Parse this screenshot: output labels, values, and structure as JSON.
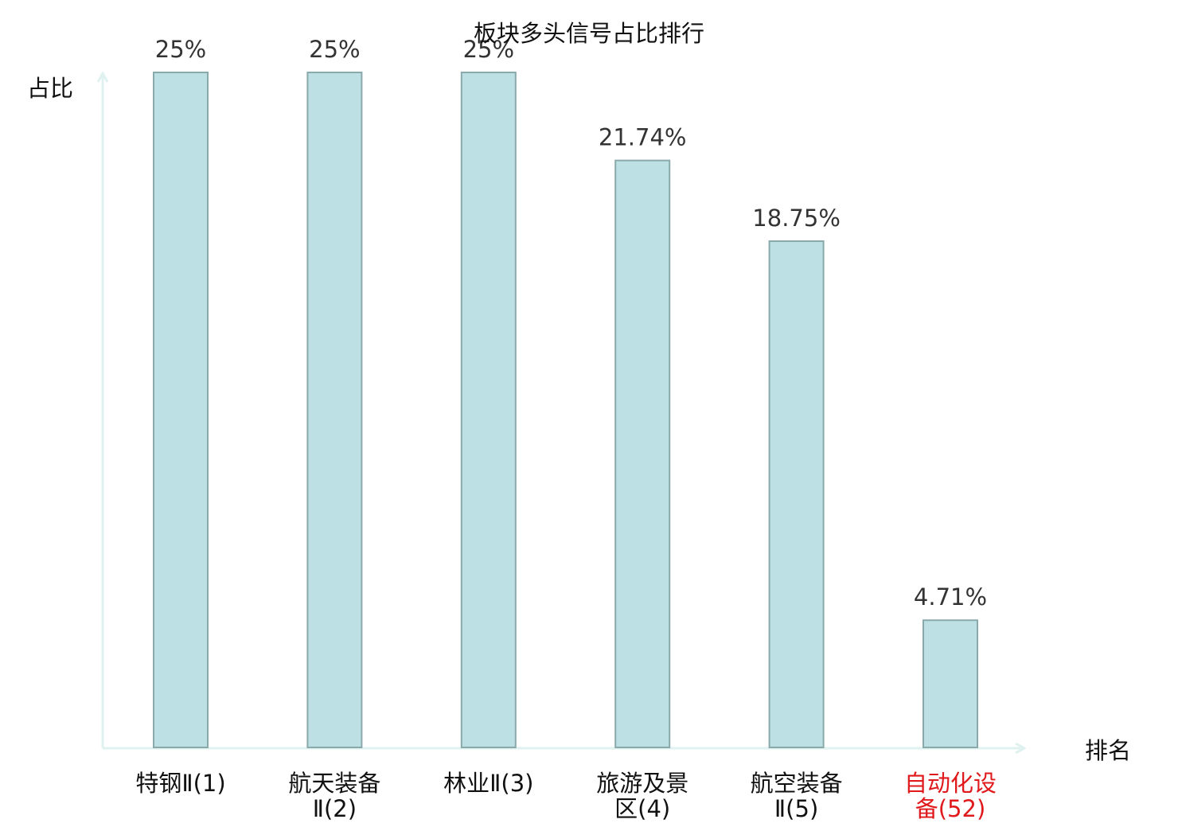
{
  "chart_data": {
    "type": "bar",
    "title": "板块多头信号占比排行",
    "xlabel": "排名",
    "ylabel": "占比",
    "categories": [
      [
        "特钢Ⅱ(1)"
      ],
      [
        "航天装备",
        "Ⅱ(2)"
      ],
      [
        "林业Ⅱ(3)"
      ],
      [
        "旅游及景",
        "区(4)"
      ],
      [
        "航空装备",
        "Ⅱ(5)"
      ],
      [
        "自动化设",
        "备(52)"
      ]
    ],
    "values": [
      25,
      25,
      25,
      21.74,
      18.75,
      4.71
    ],
    "value_labels": [
      "25%",
      "25%",
      "25%",
      "21.74%",
      "18.75%",
      "4.71%"
    ],
    "highlight_index": 5,
    "ylim": [
      0,
      25
    ],
    "grid": false,
    "colors": {
      "bar_fill": "#bce0e3",
      "bar_stroke": "#8aa9ab",
      "axis": "#dff2ef",
      "text": "#111111",
      "value_text": "#333333",
      "highlight_text": "#e0191c"
    }
  }
}
